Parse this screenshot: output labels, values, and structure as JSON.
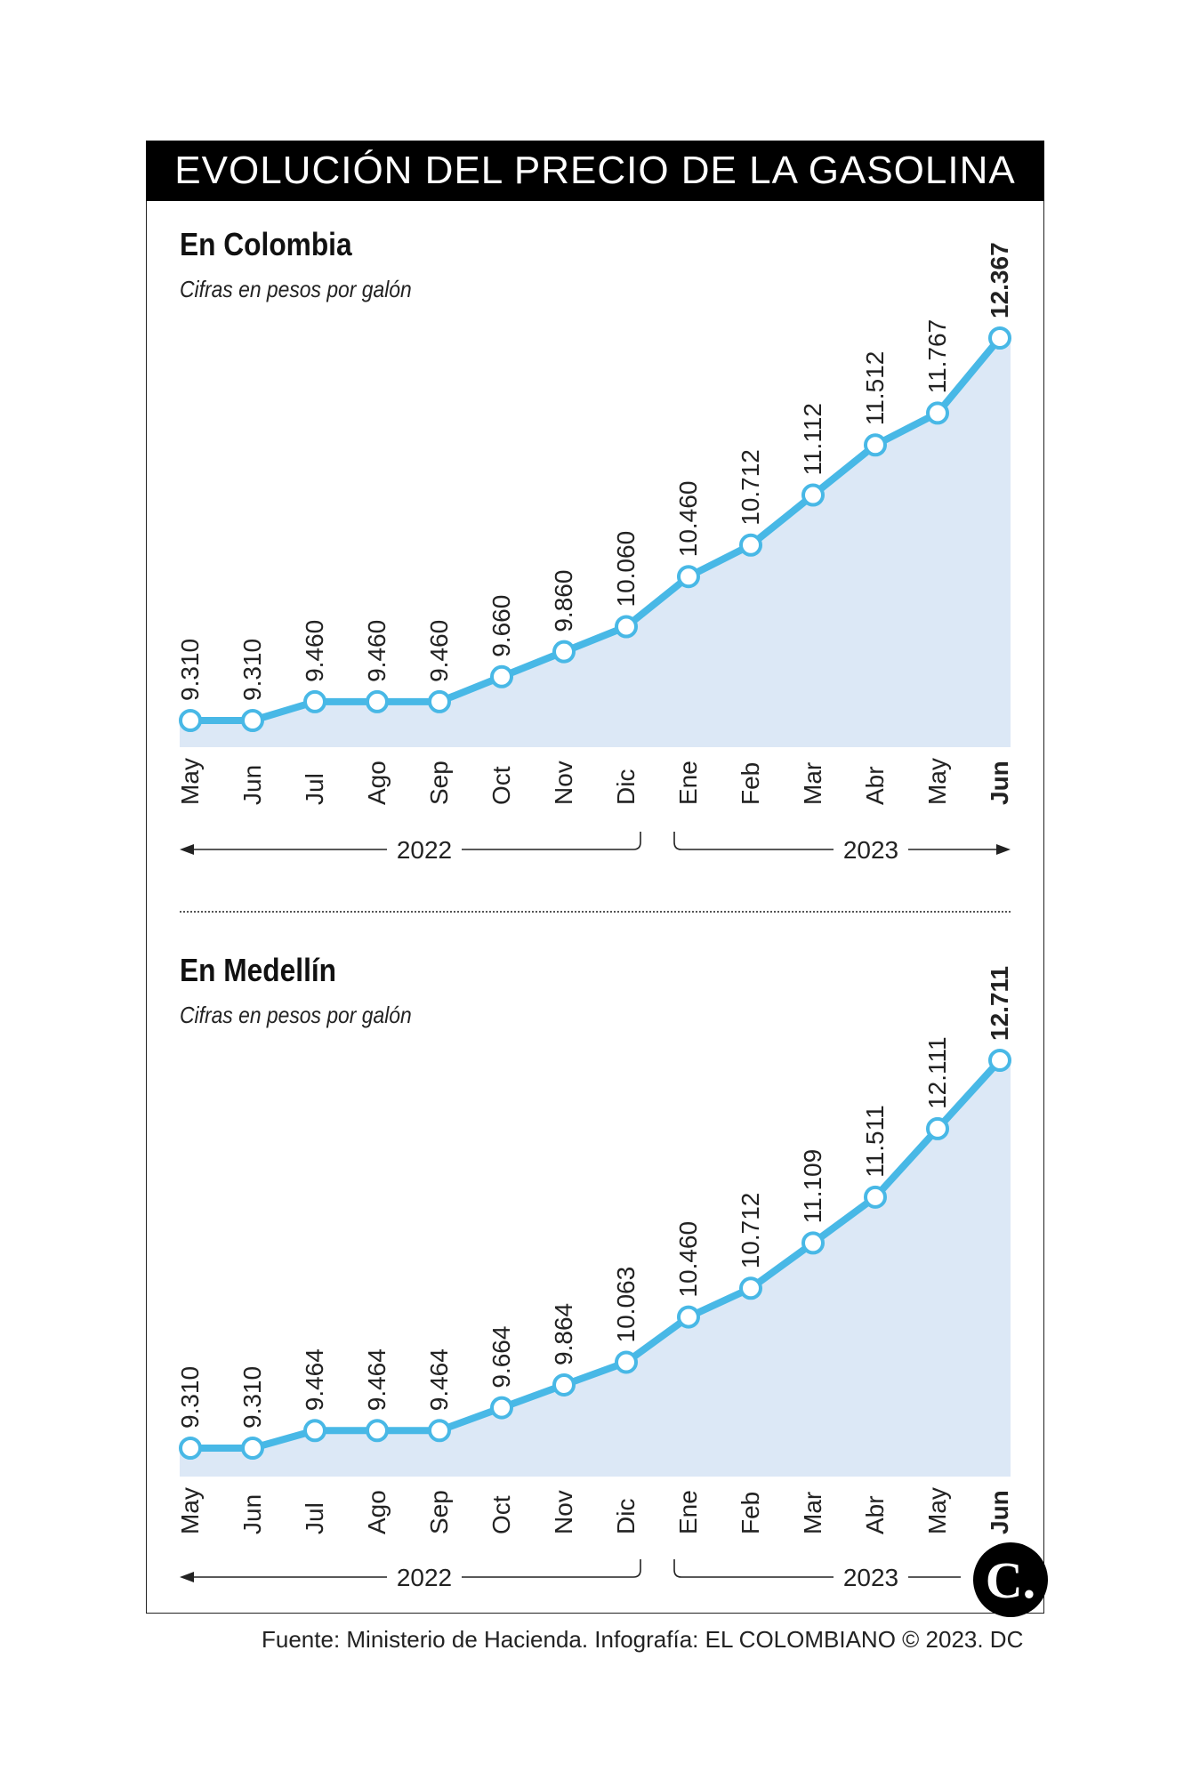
{
  "title": "EVOLUCIÓN DEL PRECIO DE LA GASOLINA",
  "source": "Fuente: Ministerio de Hacienda. Infografía: EL COLOMBIANO © 2023. DC",
  "logo_text": "C.",
  "colors": {
    "line": "#48b8e6",
    "fill": "#dce8f6",
    "point_fill": "#ffffff",
    "text": "#222222"
  },
  "chart_data": [
    {
      "type": "area",
      "title": "En Colombia",
      "subtitle": "Cifras en pesos por galón",
      "categories": [
        "May",
        "Jun",
        "Jul",
        "Ago",
        "Sep",
        "Oct",
        "Nov",
        "Dic",
        "Ene",
        "Feb",
        "Mar",
        "Abr",
        "May",
        "Jun"
      ],
      "years": [
        {
          "label": "2022",
          "from": 0,
          "to": 7
        },
        {
          "label": "2023",
          "from": 8,
          "to": 13
        }
      ],
      "values": [
        9310,
        9310,
        9460,
        9460,
        9460,
        9660,
        9860,
        10060,
        10460,
        10712,
        11112,
        11512,
        11767,
        12367
      ],
      "value_labels": [
        "9.310",
        "9.310",
        "9.460",
        "9.460",
        "9.460",
        "9.660",
        "9.860",
        "10.060",
        "10.460",
        "10.712",
        "11.112",
        "11.512",
        "11.767",
        "12.367"
      ],
      "highlight_last": true,
      "grid": false,
      "legend": "none"
    },
    {
      "type": "area",
      "title": "En Medellín",
      "subtitle": "Cifras en pesos por galón",
      "categories": [
        "May",
        "Jun",
        "Jul",
        "Ago",
        "Sep",
        "Oct",
        "Nov",
        "Dic",
        "Ene",
        "Feb",
        "Mar",
        "Abr",
        "May",
        "Jun"
      ],
      "years": [
        {
          "label": "2022",
          "from": 0,
          "to": 7
        },
        {
          "label": "2023",
          "from": 8,
          "to": 13
        }
      ],
      "values": [
        9310,
        9310,
        9464,
        9464,
        9464,
        9664,
        9864,
        10063,
        10460,
        10712,
        11109,
        11511,
        12111,
        12711
      ],
      "value_labels": [
        "9.310",
        "9.310",
        "9.464",
        "9.464",
        "9.464",
        "9.664",
        "9.864",
        "10.063",
        "10.460",
        "10.712",
        "11.109",
        "11.511",
        "12.111",
        "12.711"
      ],
      "highlight_last": true,
      "grid": false,
      "legend": "none"
    }
  ]
}
